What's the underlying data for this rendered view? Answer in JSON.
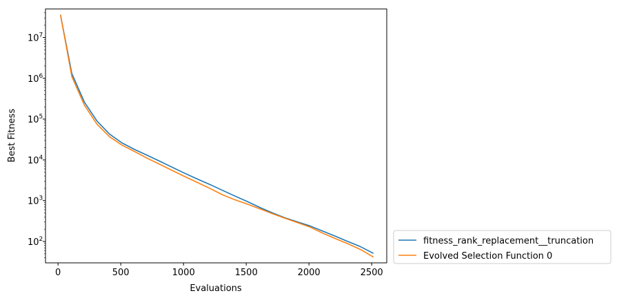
{
  "chart_data": {
    "type": "line",
    "title": "",
    "xlabel": "Evaluations",
    "ylabel": "Best Fitness",
    "xlim": [
      -100,
      2620
    ],
    "ylim": [
      30,
      50000000
    ],
    "yscale": "log",
    "grid": false,
    "legend_position": "outside-bottom-right",
    "x_ticks": [
      0,
      500,
      1000,
      1500,
      2000,
      2500
    ],
    "x_tick_labels": [
      "0",
      "500",
      "1000",
      "1500",
      "2000",
      "2500"
    ],
    "y_ticks": [
      100,
      1000,
      10000,
      100000,
      1000000,
      10000000
    ],
    "y_tick_exponents": [
      "2",
      "3",
      "4",
      "5",
      "6",
      "7"
    ],
    "y_tick_base": "10",
    "series": [
      {
        "name": "fitness_rank_replacement__truncation",
        "color": "#1f77b4",
        "x": [
          20,
          110,
          210,
          310,
          410,
          510,
          610,
          710,
          810,
          910,
          1010,
          1110,
          1210,
          1310,
          1410,
          1510,
          1610,
          1710,
          1810,
          1910,
          2010,
          2110,
          2210,
          2310,
          2410,
          2510
        ],
        "y": [
          35000000,
          1300000,
          260000,
          90000,
          43000,
          26000,
          18000,
          13000,
          9300,
          6600,
          4700,
          3400,
          2500,
          1800,
          1300,
          950,
          680,
          500,
          380,
          300,
          240,
          180,
          135,
          100,
          75,
          52
        ]
      },
      {
        "name": "Evolved Selection Function 0",
        "color": "#ff7f0e",
        "x": [
          20,
          110,
          210,
          310,
          410,
          510,
          610,
          710,
          810,
          910,
          1010,
          1110,
          1210,
          1310,
          1410,
          1510,
          1610,
          1710,
          1810,
          1910,
          2010,
          2110,
          2210,
          2310,
          2410,
          2510
        ],
        "y": [
          35000000,
          1100000,
          220000,
          75000,
          37000,
          23000,
          16000,
          11000,
          7800,
          5500,
          3900,
          2800,
          2000,
          1400,
          1050,
          820,
          630,
          480,
          370,
          290,
          225,
          160,
          118,
          88,
          64,
          42
        ]
      }
    ]
  }
}
